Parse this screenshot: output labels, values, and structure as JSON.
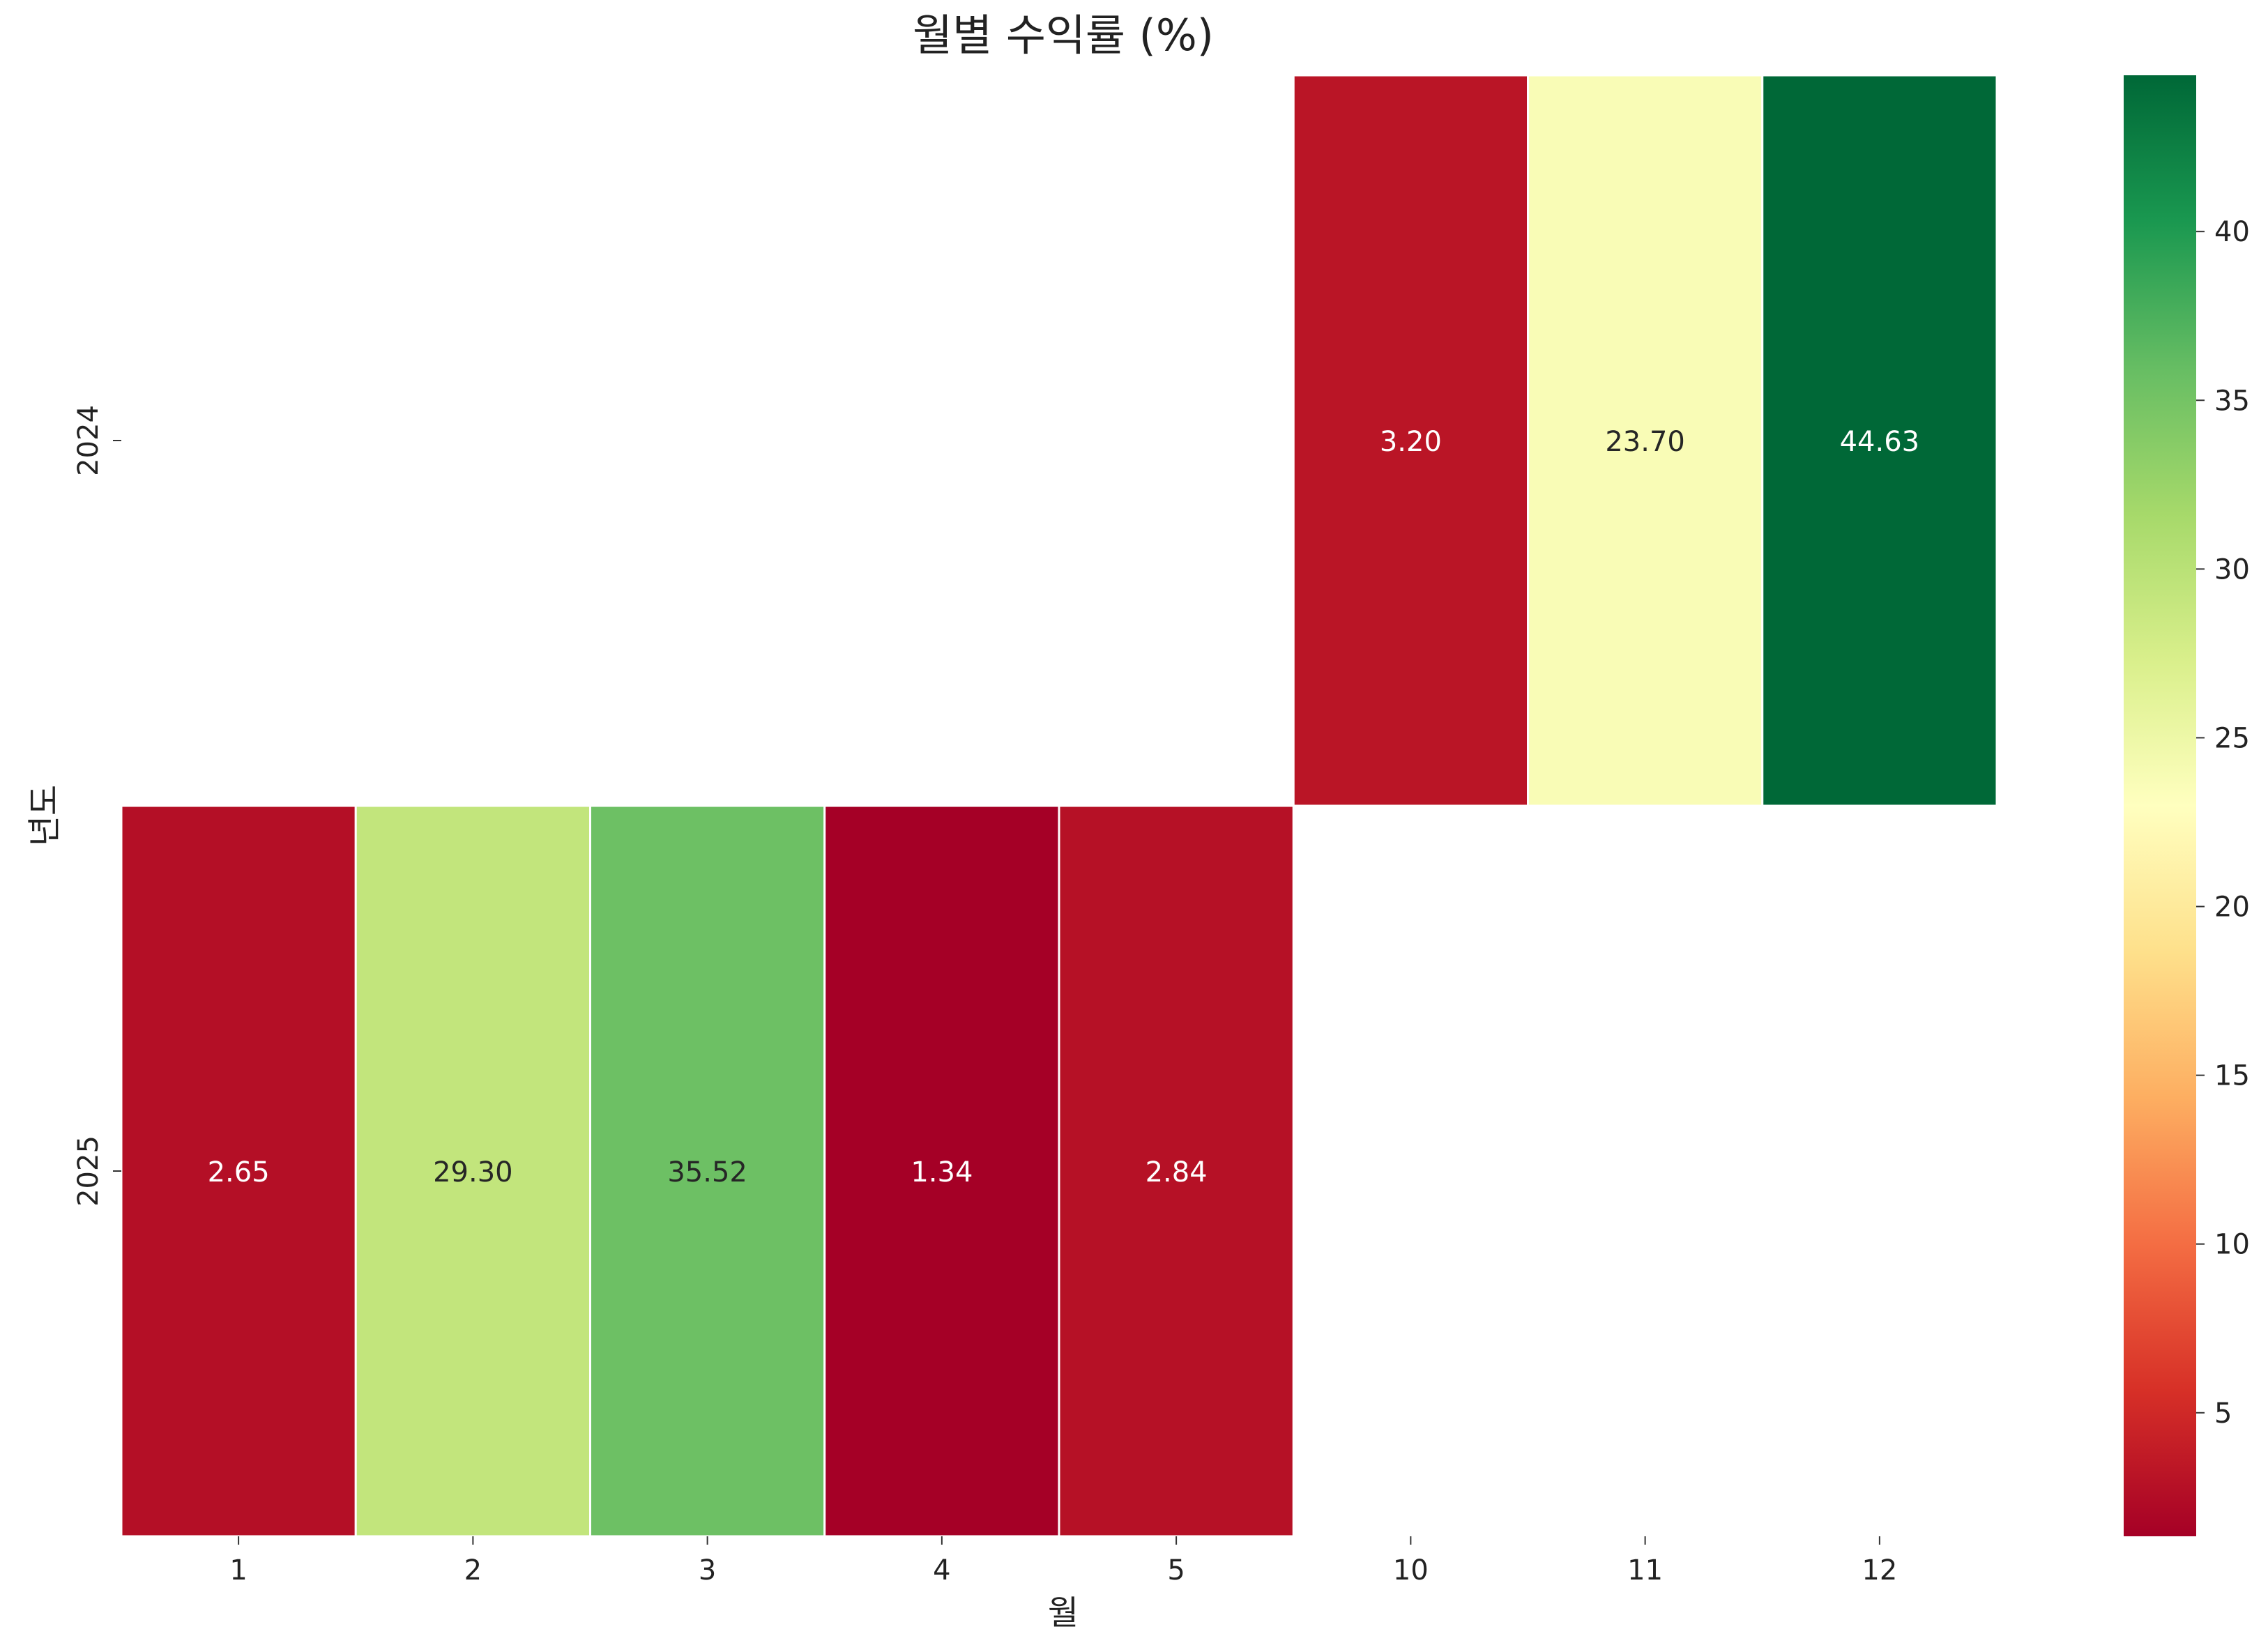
{
  "chart_data": {
    "type": "heatmap",
    "title": "월별 수익률 (%)",
    "xlabel": "월",
    "ylabel": "년도",
    "x_categories": [
      "1",
      "2",
      "3",
      "4",
      "5",
      "10",
      "11",
      "12"
    ],
    "y_categories": [
      "2024",
      "2025"
    ],
    "cells": [
      {
        "year": "2024",
        "month": "10",
        "value": 3.2,
        "label": "3.20"
      },
      {
        "year": "2024",
        "month": "11",
        "value": 23.7,
        "label": "23.70"
      },
      {
        "year": "2024",
        "month": "12",
        "value": 44.63,
        "label": "44.63"
      },
      {
        "year": "2025",
        "month": "1",
        "value": 2.65,
        "label": "2.65"
      },
      {
        "year": "2025",
        "month": "2",
        "value": 29.3,
        "label": "29.30"
      },
      {
        "year": "2025",
        "month": "3",
        "value": 35.52,
        "label": "35.52"
      },
      {
        "year": "2025",
        "month": "4",
        "value": 1.34,
        "label": "1.34"
      },
      {
        "year": "2025",
        "month": "5",
        "value": 2.84,
        "label": "2.84"
      }
    ],
    "colormap": "RdYlGn",
    "vmin": 1.34,
    "vmax": 44.63,
    "colorbar_ticks": [
      5,
      10,
      15,
      20,
      25,
      30,
      35,
      40
    ],
    "colorbar_tick_labels": [
      "5",
      "10",
      "15",
      "20",
      "25",
      "30",
      "35",
      "40"
    ],
    "grid": false
  }
}
